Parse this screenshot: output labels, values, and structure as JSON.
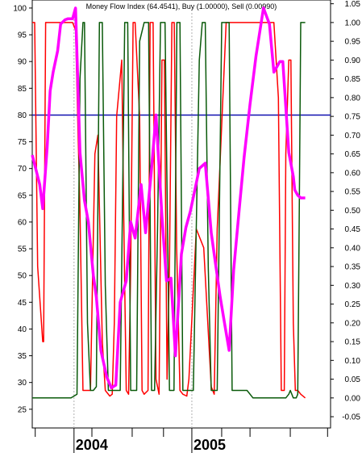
{
  "chart_data": {
    "type": "line",
    "title": "Money Flow Index (64.4541), Buy (1.00000), Sell (0.00990)",
    "x_labels": [
      "2004",
      "2005"
    ],
    "x_range": [
      0,
      100
    ],
    "x_label_positions": [
      14,
      53.5
    ],
    "left_axis": {
      "range": [
        21.5,
        101.5
      ],
      "ticks": [
        25,
        30,
        35,
        40,
        45,
        50,
        55,
        60,
        65,
        70,
        75,
        80,
        85,
        90,
        95,
        100
      ]
    },
    "right_axis": {
      "range": [
        -0.08,
        1.06
      ],
      "ticks": [
        "1.05",
        "1.00",
        "0.95",
        "0.90",
        "0.85",
        "0.80",
        "0.75",
        "0.70",
        "0.65",
        "0.60",
        "0.55",
        "0.50",
        "0.45",
        "0.40",
        "0.35",
        "0.30",
        "0.25",
        "0.20",
        "0.15",
        "0.10",
        "0.05",
        "0.00",
        "-0.05"
      ]
    },
    "reference_line": {
      "value": 80,
      "axis": "left",
      "color": "#1010b0"
    },
    "grid": "dashed vertical at year boundaries",
    "series": [
      {
        "axis": "left",
        "color": "#ff00ff",
        "x": [
          0,
          2.5,
          3.5,
          5,
          6,
          7,
          8.5,
          9.5,
          11,
          12,
          13.5,
          14.5,
          16,
          17.5,
          18.8,
          20.5,
          21.5,
          23,
          25,
          26.5,
          28,
          29.5,
          31.5,
          33,
          34.5,
          36.5,
          38,
          40,
          41.5,
          43.5,
          45,
          46.5,
          48,
          50,
          51.5,
          53,
          54.5,
          56,
          58,
          60,
          61.5,
          63,
          64.5,
          66,
          67.5,
          69.5,
          71,
          73,
          75,
          77.5,
          79.5,
          81,
          83,
          84,
          86,
          87.5,
          88,
          89,
          90,
          91.5
        ],
        "values": [
          72.5,
          67,
          62.5,
          74,
          84.5,
          88,
          92,
          97,
          97.8,
          98,
          98,
          100,
          73,
          64,
          60,
          50,
          46,
          36,
          31,
          29,
          29.5,
          45,
          49,
          60,
          57,
          67,
          58,
          70,
          80,
          61,
          49,
          49.5,
          35,
          54,
          59,
          62,
          66,
          70,
          71,
          58,
          52,
          46,
          41,
          36,
          51,
          63,
          72,
          82,
          91,
          100,
          97,
          88,
          90,
          90,
          73,
          68.5,
          66,
          65,
          64.5,
          64.5
        ]
      },
      {
        "axis": "right",
        "color": "#ff0000",
        "x": [
          0,
          0.8,
          1.8,
          3.5,
          3.8,
          4.5,
          12,
          13.5,
          14.5,
          16,
          17,
          18.5,
          19.5,
          21,
          22,
          23.5,
          24.5,
          26,
          26.8,
          27.5,
          28.3,
          30,
          30.8,
          31.5,
          32.3,
          33,
          33.8,
          34.5,
          36,
          36.8,
          37.5,
          38.8,
          39.5,
          40.5,
          41.5,
          42.5,
          43.5,
          44.3,
          45.2,
          46,
          46.8,
          47.6,
          48.4,
          49.5,
          50.5,
          51.8,
          52.5,
          55,
          57.5,
          60,
          61,
          62,
          65,
          70,
          74,
          77,
          81,
          82.5,
          83.5,
          84.5,
          85,
          86,
          86.7,
          87.5,
          88.2,
          89,
          90,
          91.5
        ],
        "values": [
          1.0,
          1.0,
          0.35,
          0.15,
          0.15,
          1.0,
          1.0,
          1.0,
          0.98,
          0.5,
          0.02,
          0.02,
          0.02,
          0.65,
          0.7,
          0.15,
          0.02,
          0.005,
          0.01,
          0.2,
          0.75,
          0.9,
          0.4,
          0.02,
          0.01,
          0.35,
          1.0,
          1.0,
          0.75,
          0.02,
          0.01,
          0.02,
          1.0,
          1.0,
          0.05,
          0.01,
          0.9,
          0.9,
          0.05,
          0.35,
          1.0,
          1.0,
          0.4,
          0.02,
          0.01,
          0.005,
          0.05,
          0.45,
          0.4,
          0.03,
          0.01,
          0.45,
          1.0,
          1.0,
          1.0,
          1.0,
          1.0,
          0.8,
          0.02,
          0.02,
          0.65,
          0.9,
          0.9,
          0.2,
          0.02,
          0.02,
          0.01,
          0.0
        ]
      },
      {
        "axis": "right",
        "color": "#0a5a0a",
        "x": [
          0,
          13,
          15,
          16,
          17,
          17.5,
          18.5,
          19.5,
          20.5,
          21.5,
          22.5,
          23.5,
          24.5,
          25.5,
          27,
          28,
          29.5,
          31,
          32,
          33,
          34,
          35,
          36,
          37.5,
          39,
          40,
          41,
          42,
          43,
          44.5,
          46,
          47.5,
          48.5,
          49.5,
          50.5,
          51.5,
          52.5,
          54,
          56,
          57,
          58,
          59,
          60,
          61,
          62,
          63.5,
          65,
          66,
          67,
          68,
          69,
          70,
          72,
          74,
          80,
          85,
          86,
          86.5,
          87.5,
          88.5,
          89,
          89.5,
          90,
          91.5
        ],
        "values": [
          0.0,
          0.0,
          0.01,
          0.85,
          1.0,
          1.0,
          0.2,
          0.02,
          0.02,
          0.03,
          1.0,
          1.0,
          0.3,
          0.02,
          0.02,
          0.02,
          0.02,
          1.0,
          1.0,
          0.02,
          0.02,
          0.02,
          0.95,
          1.0,
          1.0,
          0.02,
          0.02,
          0.45,
          1.0,
          1.0,
          0.02,
          0.02,
          1.0,
          1.0,
          0.02,
          0.02,
          0.02,
          0.02,
          0.9,
          1.0,
          1.0,
          0.35,
          0.02,
          0.02,
          0.02,
          1.0,
          1.0,
          1.0,
          0.02,
          0.02,
          0.02,
          0.02,
          0.02,
          0.0,
          0.0,
          0.0,
          0.01,
          0.02,
          0.0,
          0.0,
          0.01,
          0.5,
          1.0,
          1.0
        ]
      }
    ]
  }
}
